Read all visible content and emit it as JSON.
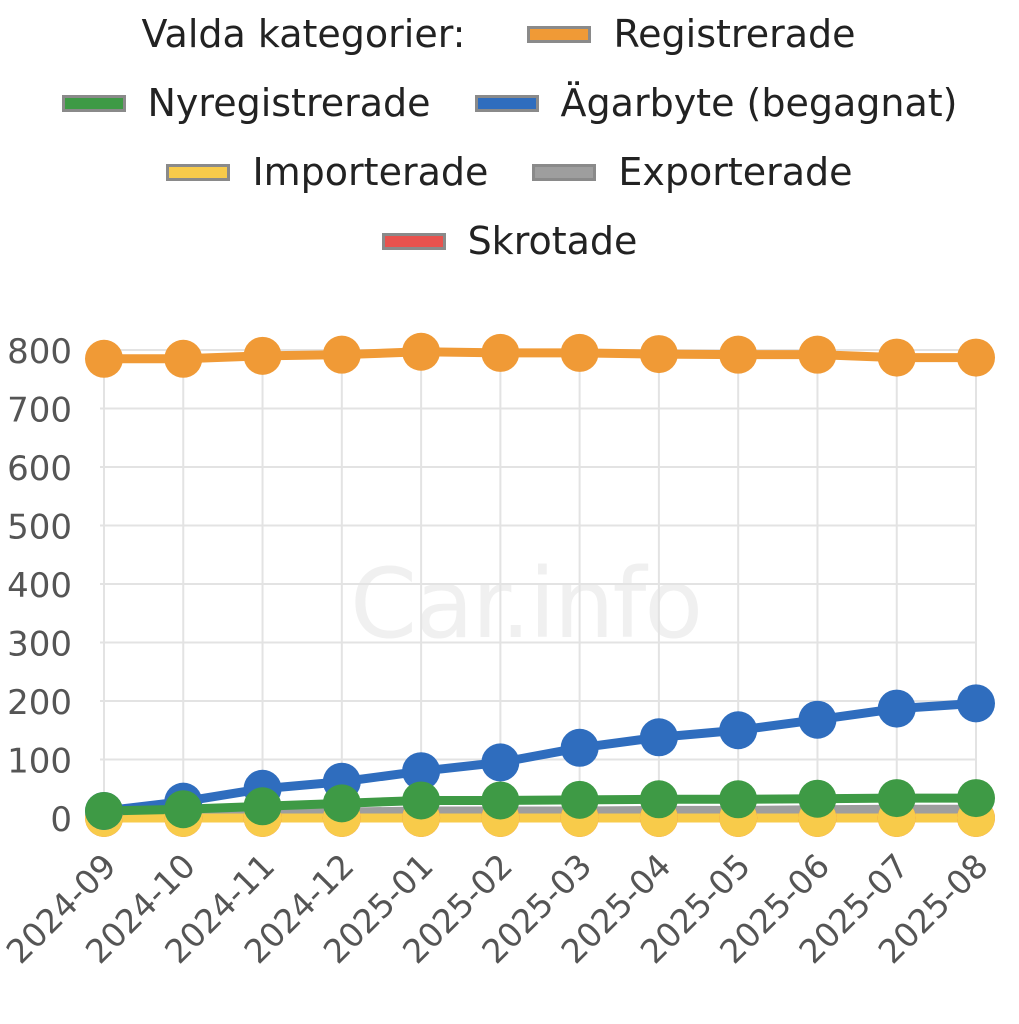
{
  "watermark": "Car.info",
  "legend": {
    "title": "Valda kategorier:",
    "items": [
      {
        "label": "Registrerade",
        "color": "#F09A36"
      },
      {
        "label": "Nyregistrerade",
        "color": "#3E9A45"
      },
      {
        "label": "Ägarbyte (begagnat)",
        "color": "#2F6DBE"
      },
      {
        "label": "Importerade",
        "color": "#F8CB4A"
      },
      {
        "label": "Exporterade",
        "color": "#9E9E9E"
      },
      {
        "label": "Skrotade",
        "color": "#E8524E"
      }
    ]
  },
  "chart_data": {
    "type": "line",
    "x": [
      "2024-09",
      "2024-10",
      "2024-11",
      "2024-12",
      "2025-01",
      "2025-02",
      "2025-03",
      "2025-04",
      "2025-05",
      "2025-06",
      "2025-07",
      "2025-08"
    ],
    "ylim": [
      0,
      800
    ],
    "yticks": [
      0,
      100,
      200,
      300,
      400,
      500,
      600,
      700,
      800
    ],
    "grid": true,
    "legend_position": "top",
    "series": [
      {
        "name": "Registrerade",
        "color": "#F09A36",
        "values": [
          785,
          785,
          790,
          792,
          797,
          795,
          795,
          793,
          792,
          792,
          787,
          787
        ]
      },
      {
        "name": "Exporterade",
        "color": "#9E9E9E",
        "values": [
          0,
          5,
          8,
          10,
          12,
          12,
          12,
          13,
          13,
          14,
          15,
          15
        ]
      },
      {
        "name": "Skrotade",
        "color": "#E8524E",
        "values": [
          0,
          0,
          0,
          0,
          0,
          0,
          0,
          0,
          0,
          0,
          0,
          0
        ]
      },
      {
        "name": "Importerade",
        "color": "#F8CB4A",
        "values": [
          0,
          0,
          0,
          0,
          0,
          0,
          0,
          0,
          0,
          0,
          0,
          0
        ]
      },
      {
        "name": "Ägarbyte (begagnat)",
        "color": "#2F6DBE",
        "values": [
          12,
          28,
          50,
          62,
          80,
          95,
          120,
          138,
          150,
          168,
          187,
          196
        ]
      },
      {
        "name": "Nyregistrerade",
        "color": "#3E9A45",
        "values": [
          12,
          15,
          20,
          25,
          30,
          30,
          31,
          32,
          32,
          33,
          34,
          34
        ]
      }
    ]
  }
}
